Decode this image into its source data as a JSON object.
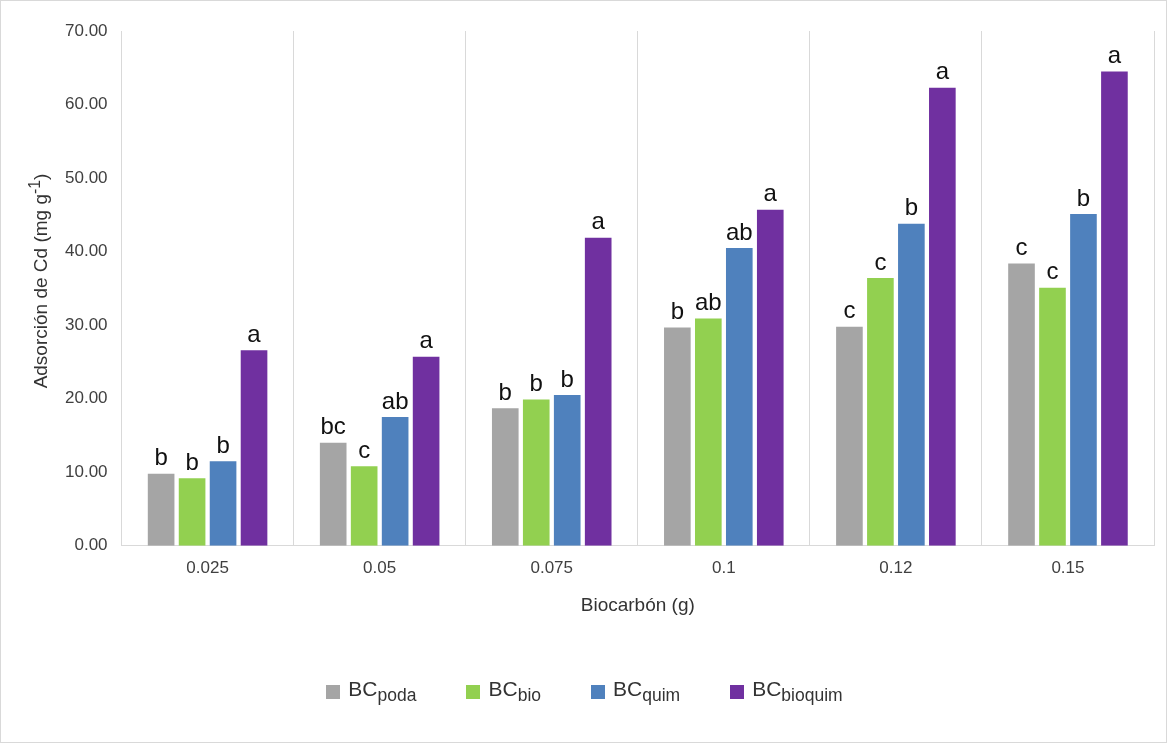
{
  "chart_data": {
    "type": "bar",
    "xlabel": "Biocarbón (g)",
    "ylabel": "Adsorción de Cd (mg g$^{-1}$)",
    "categories": [
      "0.025",
      "0.05",
      "0.075",
      "0.1",
      "0.12",
      "0.15"
    ],
    "ylim": [
      0,
      70
    ],
    "yticks": [
      {
        "value": 0,
        "label": "0.00"
      },
      {
        "value": 10,
        "label": "10.00"
      },
      {
        "value": 20,
        "label": "20.00"
      },
      {
        "value": 30,
        "label": "30.00"
      },
      {
        "value": 40,
        "label": "40.00"
      },
      {
        "value": 50,
        "label": "50.00"
      },
      {
        "value": 60,
        "label": "60.00"
      },
      {
        "value": 70,
        "label": "70.00"
      }
    ],
    "grid": "x",
    "legend": "bottom",
    "series": [
      {
        "name": "BC$_{poda}$",
        "color": "#a5a5a5",
        "values": [
          9.8,
          14.0,
          18.7,
          29.7,
          29.8,
          38.4
        ],
        "value_labels": [
          "b",
          "bc",
          "b",
          "b",
          "c",
          "c"
        ]
      },
      {
        "name": "BC$_{bio}$",
        "color": "#92d050",
        "values": [
          9.2,
          10.8,
          19.9,
          30.9,
          36.4,
          35.1
        ],
        "value_labels": [
          "b",
          "c",
          "b",
          "ab",
          "c",
          "c"
        ]
      },
      {
        "name": "BC$_{quim}$",
        "color": "#4f81bd",
        "values": [
          11.5,
          17.5,
          20.5,
          40.5,
          43.8,
          45.1
        ],
        "value_labels": [
          "b",
          "ab",
          "b",
          "ab",
          "b",
          "b"
        ]
      },
      {
        "name": "BC$_{bioquim}$",
        "color": "#7030a0",
        "values": [
          26.6,
          25.7,
          41.9,
          45.7,
          62.3,
          64.5
        ],
        "value_labels": [
          "a",
          "a",
          "a",
          "a",
          "a",
          "a"
        ]
      }
    ]
  }
}
